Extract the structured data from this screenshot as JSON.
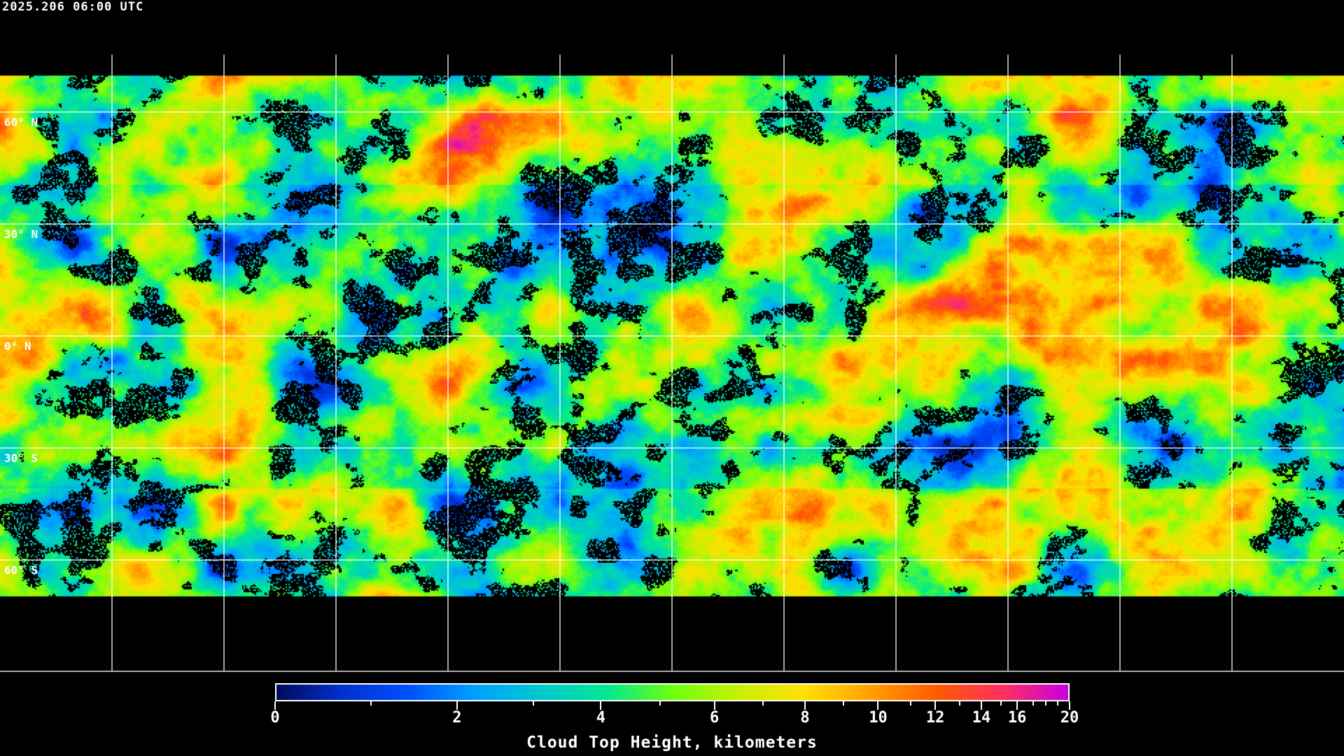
{
  "timestamp": "2025.206 06:00 UTC",
  "map": {
    "latitude_labels": [
      "60° N",
      "30° N",
      "0° N",
      "30° S",
      "60° S"
    ],
    "gridline_color": "#ffffff"
  },
  "colorbar": {
    "title": "Cloud Top Height, kilometers",
    "range_km": [
      0,
      20
    ],
    "tick_labels": [
      "0",
      "2",
      "4",
      "6",
      "8",
      "10",
      "12",
      "14",
      "16",
      "20"
    ],
    "colors": [
      "#000a5a",
      "#0030d0",
      "#0050ff",
      "#00a0ff",
      "#00c8d0",
      "#00e890",
      "#6cff10",
      "#c8f000",
      "#ffe000",
      "#ffa000",
      "#ff5a00",
      "#ff3060",
      "#c800e0"
    ]
  }
}
